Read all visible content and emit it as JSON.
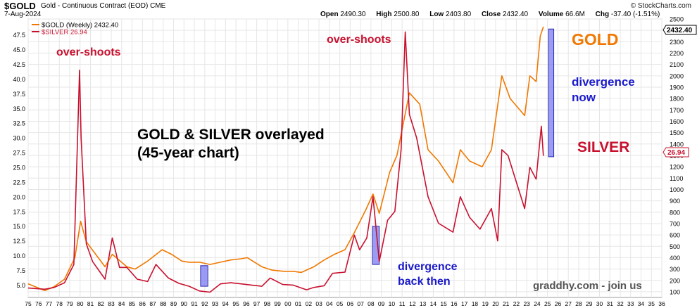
{
  "header": {
    "symbol": "$GOLD",
    "description": "Gold - Continuous Contract (EOD)",
    "exchange": "CME",
    "brand": "© StockCharts.com",
    "date": "7-Aug-2024",
    "open_label": "Open",
    "open": "2490.30",
    "high_label": "High",
    "high": "2500.80",
    "low_label": "Low",
    "low": "2403.80",
    "close_label": "Close",
    "close": "2432.40",
    "volume_label": "Volume",
    "volume": "66.6M",
    "chg_label": "Chg",
    "chg": "-37.40 (-1.51%)"
  },
  "legend": {
    "gold": "$GOLD (Weekly) 2432.40",
    "silver": "$SILVER 26.94"
  },
  "colors": {
    "gold": "#f07800",
    "silver": "#c8102e",
    "highlight_fill": "#7b7bf0",
    "highlight_stroke": "#2a2ab0",
    "grid": "#e6e6e6",
    "annotation_blue": "#1a1acc",
    "watermark": "#555555"
  },
  "annotations": {
    "overshoots_left": "over-shoots",
    "overshoots_mid": "over-shoots",
    "title_line1": "GOLD & SILVER overlayed",
    "title_line2": "(45-year chart)",
    "gold_label": "GOLD",
    "divergence_now_1": "divergence",
    "divergence_now_2": "now",
    "silver_label": "SILVER",
    "divergence_then_1": "divergence",
    "divergence_then_2": "back then",
    "watermark": "graddhy.com - join us"
  },
  "price_tags": {
    "gold": "2432.40",
    "silver": "26.94"
  },
  "chart_data": {
    "type": "line",
    "x_ticks": [
      "75",
      "76",
      "77",
      "78",
      "79",
      "80",
      "81",
      "82",
      "83",
      "84",
      "85",
      "86",
      "87",
      "88",
      "89",
      "90",
      "91",
      "92",
      "93",
      "94",
      "95",
      "96",
      "97",
      "98",
      "99",
      "00",
      "01",
      "02",
      "03",
      "04",
      "05",
      "06",
      "07",
      "08",
      "09",
      "10",
      "11",
      "12",
      "13",
      "14",
      "15",
      "16",
      "17",
      "18",
      "19",
      "20",
      "21",
      "22",
      "23",
      "24",
      "25",
      "26",
      "27",
      "28",
      "29",
      "30",
      "31",
      "32",
      "33",
      "34",
      "35",
      "36"
    ],
    "x_range": [
      1975,
      2036
    ],
    "y_left": {
      "ticks": [
        "5.0",
        "7.5",
        "10.0",
        "12.5",
        "15.0",
        "17.5",
        "20.0",
        "22.5",
        "25.0",
        "27.5",
        "30.0",
        "32.5",
        "35.0",
        "37.5",
        "40.0",
        "42.5",
        "45.0",
        "47.5"
      ],
      "range": [
        2.9,
        50.2
      ]
    },
    "y_right": {
      "ticks": [
        "100",
        "200",
        "300",
        "400",
        "500",
        "600",
        "700",
        "800",
        "900",
        "1000",
        "1100",
        "1200",
        "1300",
        "1400",
        "1500",
        "1600",
        "1700",
        "1800",
        "1900",
        "2000",
        "2100",
        "2200",
        "2300",
        "2400",
        "2500"
      ],
      "range": [
        50,
        2500
      ]
    },
    "grid": true,
    "legend_position": "top-left",
    "series": [
      {
        "name": "$GOLD (Weekly) 2432.40",
        "axis": "right",
        "color": "#f07800",
        "x": [
          1975.0,
          1976.6,
          1977.5,
          1978.5,
          1979.5,
          1980.05,
          1980.6,
          1981.5,
          1982.4,
          1983.1,
          1984.5,
          1985.3,
          1986.5,
          1987.9,
          1988.8,
          1989.8,
          1990.5,
          1991.5,
          1992.5,
          1993.5,
          1994.5,
          1995.5,
          1996.1,
          1997.5,
          1998.5,
          1999.6,
          2000.5,
          2001.3,
          2002.5,
          2003.5,
          2004.5,
          2005.5,
          2006.4,
          2007.5,
          2008.2,
          2008.8,
          2009.8,
          2010.5,
          2011.7,
          2012.7,
          2013.5,
          2014.5,
          2015.9,
          2016.6,
          2017.5,
          2018.7,
          2019.6,
          2020.6,
          2021.4,
          2022.8,
          2023.3,
          2023.9,
          2024.3,
          2024.6
        ],
        "y": [
          170,
          110,
          145,
          210,
          400,
          720,
          540,
          430,
          320,
          430,
          320,
          300,
          370,
          470,
          430,
          370,
          360,
          360,
          340,
          360,
          380,
          390,
          400,
          320,
          290,
          280,
          280,
          270,
          320,
          380,
          430,
          470,
          620,
          820,
          960,
          790,
          1150,
          1300,
          1850,
          1750,
          1350,
          1250,
          1060,
          1350,
          1250,
          1200,
          1350,
          2000,
          1800,
          1650,
          2000,
          1950,
          2350,
          2432
        ]
      },
      {
        "name": "$SILVER 26.94",
        "axis": "left",
        "color": "#c8102e",
        "x": [
          1975.0,
          1976.6,
          1977.5,
          1978.5,
          1979.4,
          1979.95,
          1980.1,
          1980.6,
          1981.2,
          1982.4,
          1983.1,
          1983.8,
          1984.5,
          1985.5,
          1986.5,
          1987.3,
          1988.5,
          1989.5,
          1990.5,
          1991.5,
          1992.5,
          1993.5,
          1994.5,
          1995.5,
          1996.5,
          1997.5,
          1998.3,
          1999.5,
          2000.5,
          2001.8,
          2002.5,
          2003.5,
          2004.3,
          2005.5,
          2006.4,
          2006.9,
          2007.6,
          2008.2,
          2008.8,
          2009.6,
          2010.3,
          2010.9,
          2011.3,
          2011.7,
          2012.4,
          2013.5,
          2014.5,
          2015.9,
          2016.6,
          2017.5,
          2018.5,
          2019.6,
          2020.2,
          2020.6,
          2021.2,
          2022.8,
          2023.3,
          2023.9,
          2024.4,
          2024.6
        ],
        "y": [
          4.5,
          4.3,
          4.6,
          5.4,
          8.5,
          41.5,
          30,
          12,
          9,
          6,
          13,
          8,
          8,
          6,
          5.6,
          8.5,
          6.2,
          5.3,
          4.8,
          4.0,
          3.8,
          5.2,
          5.4,
          5.2,
          5.0,
          4.8,
          6.2,
          5.1,
          5.0,
          4.2,
          4.6,
          4.9,
          7.0,
          7.2,
          13.5,
          11.0,
          13.0,
          20.0,
          9.0,
          16.0,
          17.5,
          28.0,
          48.0,
          34.0,
          30.0,
          20.0,
          15.5,
          14.0,
          20.0,
          16.5,
          14.5,
          18.0,
          12.5,
          28.0,
          27.0,
          18.0,
          25.0,
          23.0,
          32.0,
          26.94
        ]
      }
    ],
    "highlights": [
      {
        "x": [
          1991.6,
          1992.3
        ],
        "y_left": [
          4.8,
          8.3
        ]
      },
      {
        "x": [
          2008.15,
          2008.8
        ],
        "y_left": [
          8.5,
          15.0
        ]
      },
      {
        "x": [
          2025.1,
          2025.6
        ],
        "y_left": [
          26.8,
          48.5
        ]
      }
    ]
  }
}
